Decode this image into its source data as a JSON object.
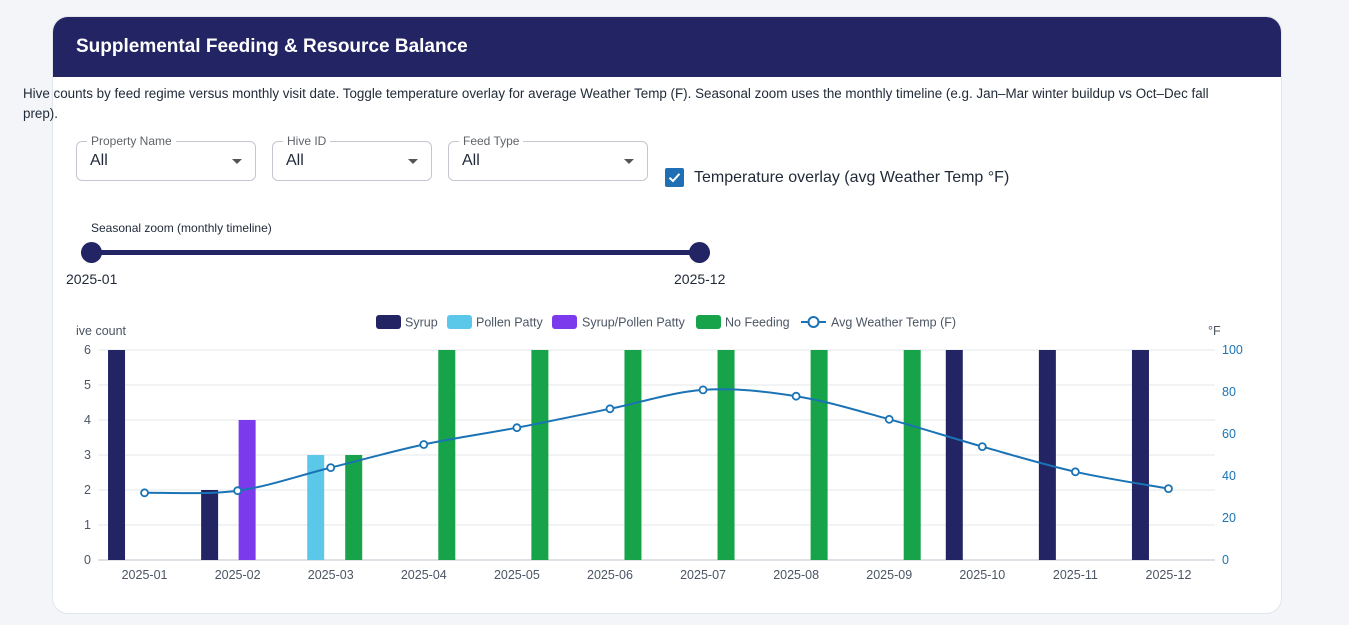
{
  "header": {
    "title": "Supplemental Feeding & Resource Balance"
  },
  "description": "Hive counts by feed regime versus monthly visit date. Toggle temperature overlay for average Weather Temp (F). Seasonal zoom uses the monthly timeline (e.g. Jan–Mar winter buildup vs Oct–Dec fall prep).",
  "filters": {
    "property": {
      "label": "Property Name",
      "value": "All"
    },
    "hive": {
      "label": "Hive ID",
      "value": "All"
    },
    "feed": {
      "label": "Feed Type",
      "value": "All"
    }
  },
  "overlay": {
    "checked": true,
    "label": "Temperature overlay (avg Weather Temp °F)"
  },
  "zoom": {
    "label": "Seasonal zoom (monthly timeline)",
    "start": "2025-01",
    "end": "2025-12"
  },
  "colors": {
    "brand": "#222463",
    "Syrup": "#222463",
    "Pollen Patty": "#5bc8ea",
    "Syrup/Pollen Patty": "#7c3aed",
    "No Feeding": "#16a34a",
    "temp": "#1a73b5"
  },
  "chart_data": {
    "type": "bar",
    "ylabel": "ive count",
    "y2label": "°F",
    "ylim": [
      0,
      6
    ],
    "y2lim": [
      0,
      100
    ],
    "categories": [
      "2025-01",
      "2025-02",
      "2025-03",
      "2025-04",
      "2025-05",
      "2025-06",
      "2025-07",
      "2025-08",
      "2025-09",
      "2025-10",
      "2025-11",
      "2025-12"
    ],
    "series": [
      {
        "name": "Syrup",
        "values": [
          6,
          2,
          0,
          0,
          0,
          0,
          0,
          0,
          0,
          6,
          6,
          6
        ]
      },
      {
        "name": "Pollen Patty",
        "values": [
          0,
          0,
          3,
          0,
          0,
          0,
          0,
          0,
          0,
          0,
          0,
          0
        ]
      },
      {
        "name": "Syrup/Pollen Patty",
        "values": [
          0,
          4,
          0,
          0,
          0,
          0,
          0,
          0,
          0,
          0,
          0,
          0
        ]
      },
      {
        "name": "No Feeding",
        "values": [
          0,
          0,
          3,
          6,
          6,
          6,
          6,
          6,
          6,
          0,
          0,
          0
        ]
      }
    ],
    "line": {
      "name": "Avg Weather Temp (F)",
      "values": [
        32,
        33,
        44,
        55,
        63,
        72,
        81,
        78,
        67,
        54,
        42,
        34
      ]
    },
    "yticks": [
      0,
      1,
      2,
      3,
      4,
      5,
      6
    ],
    "y2ticks": [
      0,
      20,
      40,
      60,
      80,
      100
    ],
    "legend_position": "top"
  }
}
